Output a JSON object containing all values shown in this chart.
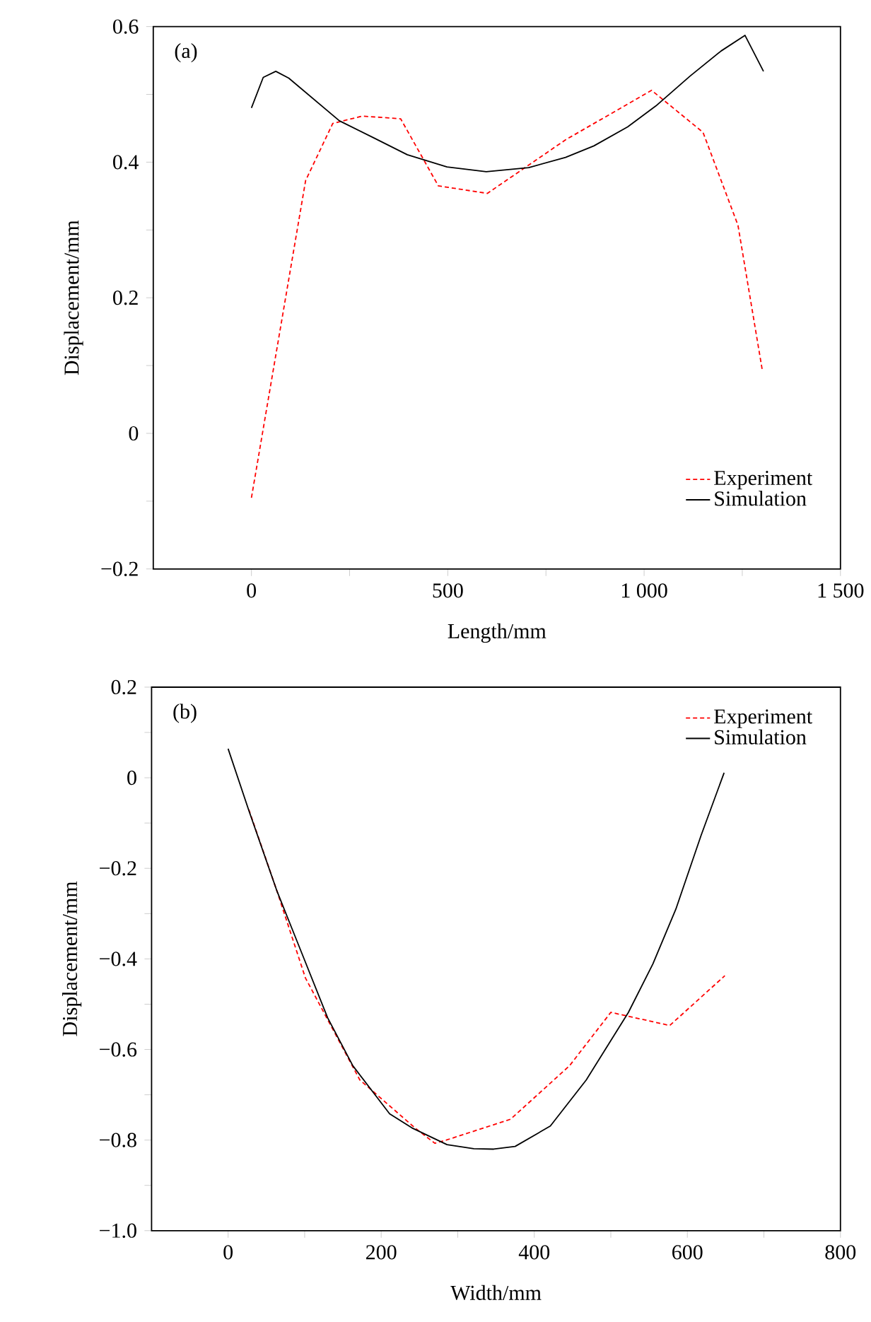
{
  "chart_data": [
    {
      "type": "line",
      "xlabel": "Length/mm",
      "ylabel": "Displacement/mm",
      "annotations": [
        "(a)"
      ],
      "legend": "bottom right",
      "xlim": [
        -250,
        1500
      ],
      "ylim": [
        -0.2,
        0.6
      ],
      "xticks": [
        0,
        {
          "value": 250,
          "label": null
        },
        500,
        {
          "value": 750,
          "label": null
        },
        {
          "value": 1000,
          "label": "1 000"
        },
        {
          "value": 1250,
          "label": null
        },
        {
          "value": 1500,
          "label": "1 500"
        }
      ],
      "yticks": [
        {
          "value": -0.2,
          "label": "−0.2"
        },
        {
          "value": -0.1,
          "label": null
        },
        0,
        {
          "value": 0.1,
          "label": null
        },
        0.2,
        {
          "value": 0.3,
          "label": null
        },
        0.4,
        {
          "value": 0.5,
          "label": null
        },
        0.6
      ],
      "series": [
        {
          "name": "Experiment",
          "color": "#ff0000",
          "line_style": "dashed",
          "x": [
            0,
            138,
            207,
            282,
            380,
            476,
            601,
            800,
            1019,
            1150,
            1239,
            1301
          ],
          "values": [
            -0.095,
            0.373,
            0.457,
            0.468,
            0.464,
            0.365,
            0.354,
            0.433,
            0.506,
            0.444,
            0.307,
            0.093
          ]
        },
        {
          "name": "Simulation",
          "color": "#000000",
          "line_style": "solid",
          "x": [
            0,
            30,
            62,
            95,
            224,
            311,
            397,
            498,
            598,
            706,
            800,
            872,
            958,
            1030,
            1117,
            1196,
            1257,
            1304
          ],
          "values": [
            0.48,
            0.525,
            0.534,
            0.524,
            0.461,
            0.436,
            0.411,
            0.393,
            0.386,
            0.392,
            0.407,
            0.424,
            0.452,
            0.483,
            0.527,
            0.564,
            0.587,
            0.534
          ]
        }
      ]
    },
    {
      "type": "line",
      "xlabel": "Width/mm",
      "ylabel": "Displacement/mm",
      "annotations": [
        "(b)"
      ],
      "legend": "top right",
      "xlim": [
        -100,
        800
      ],
      "ylim": [
        -1.0,
        0.2
      ],
      "xticks": [
        0,
        {
          "value": 100,
          "label": null
        },
        200,
        {
          "value": 300,
          "label": null
        },
        400,
        {
          "value": 500,
          "label": null
        },
        600,
        {
          "value": 700,
          "label": null
        },
        800
      ],
      "yticks": [
        {
          "value": -1.0,
          "label": "−1.0"
        },
        {
          "value": -0.9,
          "label": null
        },
        {
          "value": -0.8,
          "label": "−0.8"
        },
        {
          "value": -0.7,
          "label": null
        },
        {
          "value": -0.6,
          "label": "−0.6"
        },
        {
          "value": -0.5,
          "label": null
        },
        {
          "value": -0.4,
          "label": "−0.4"
        },
        {
          "value": -0.3,
          "label": null
        },
        {
          "value": -0.2,
          "label": "−0.2"
        },
        {
          "value": -0.1,
          "label": null
        },
        0,
        {
          "value": 0.1,
          "label": null
        },
        0.2
      ],
      "series": [
        {
          "name": "Experiment",
          "color": "#ff0000",
          "line_style": "dashed",
          "x": [
            27,
            64,
            101,
            172,
            244,
            270,
            285,
            369,
            446,
            500,
            577,
            649
          ],
          "values": [
            -0.07,
            -0.251,
            -0.442,
            -0.667,
            -0.773,
            -0.807,
            -0.8,
            -0.754,
            -0.636,
            -0.518,
            -0.547,
            -0.437
          ]
        },
        {
          "name": "Simulation",
          "color": "#000000",
          "line_style": "solid",
          "x": [
            0,
            27,
            64,
            91,
            130,
            163,
            211,
            240,
            286,
            321,
            347,
            375,
            421,
            468,
            523,
            555,
            585,
            618,
            648
          ],
          "values": [
            0.064,
            -0.072,
            -0.251,
            -0.365,
            -0.53,
            -0.636,
            -0.742,
            -0.773,
            -0.81,
            -0.819,
            -0.82,
            -0.814,
            -0.769,
            -0.667,
            -0.518,
            -0.411,
            -0.29,
            -0.127,
            0.011
          ]
        }
      ]
    }
  ]
}
